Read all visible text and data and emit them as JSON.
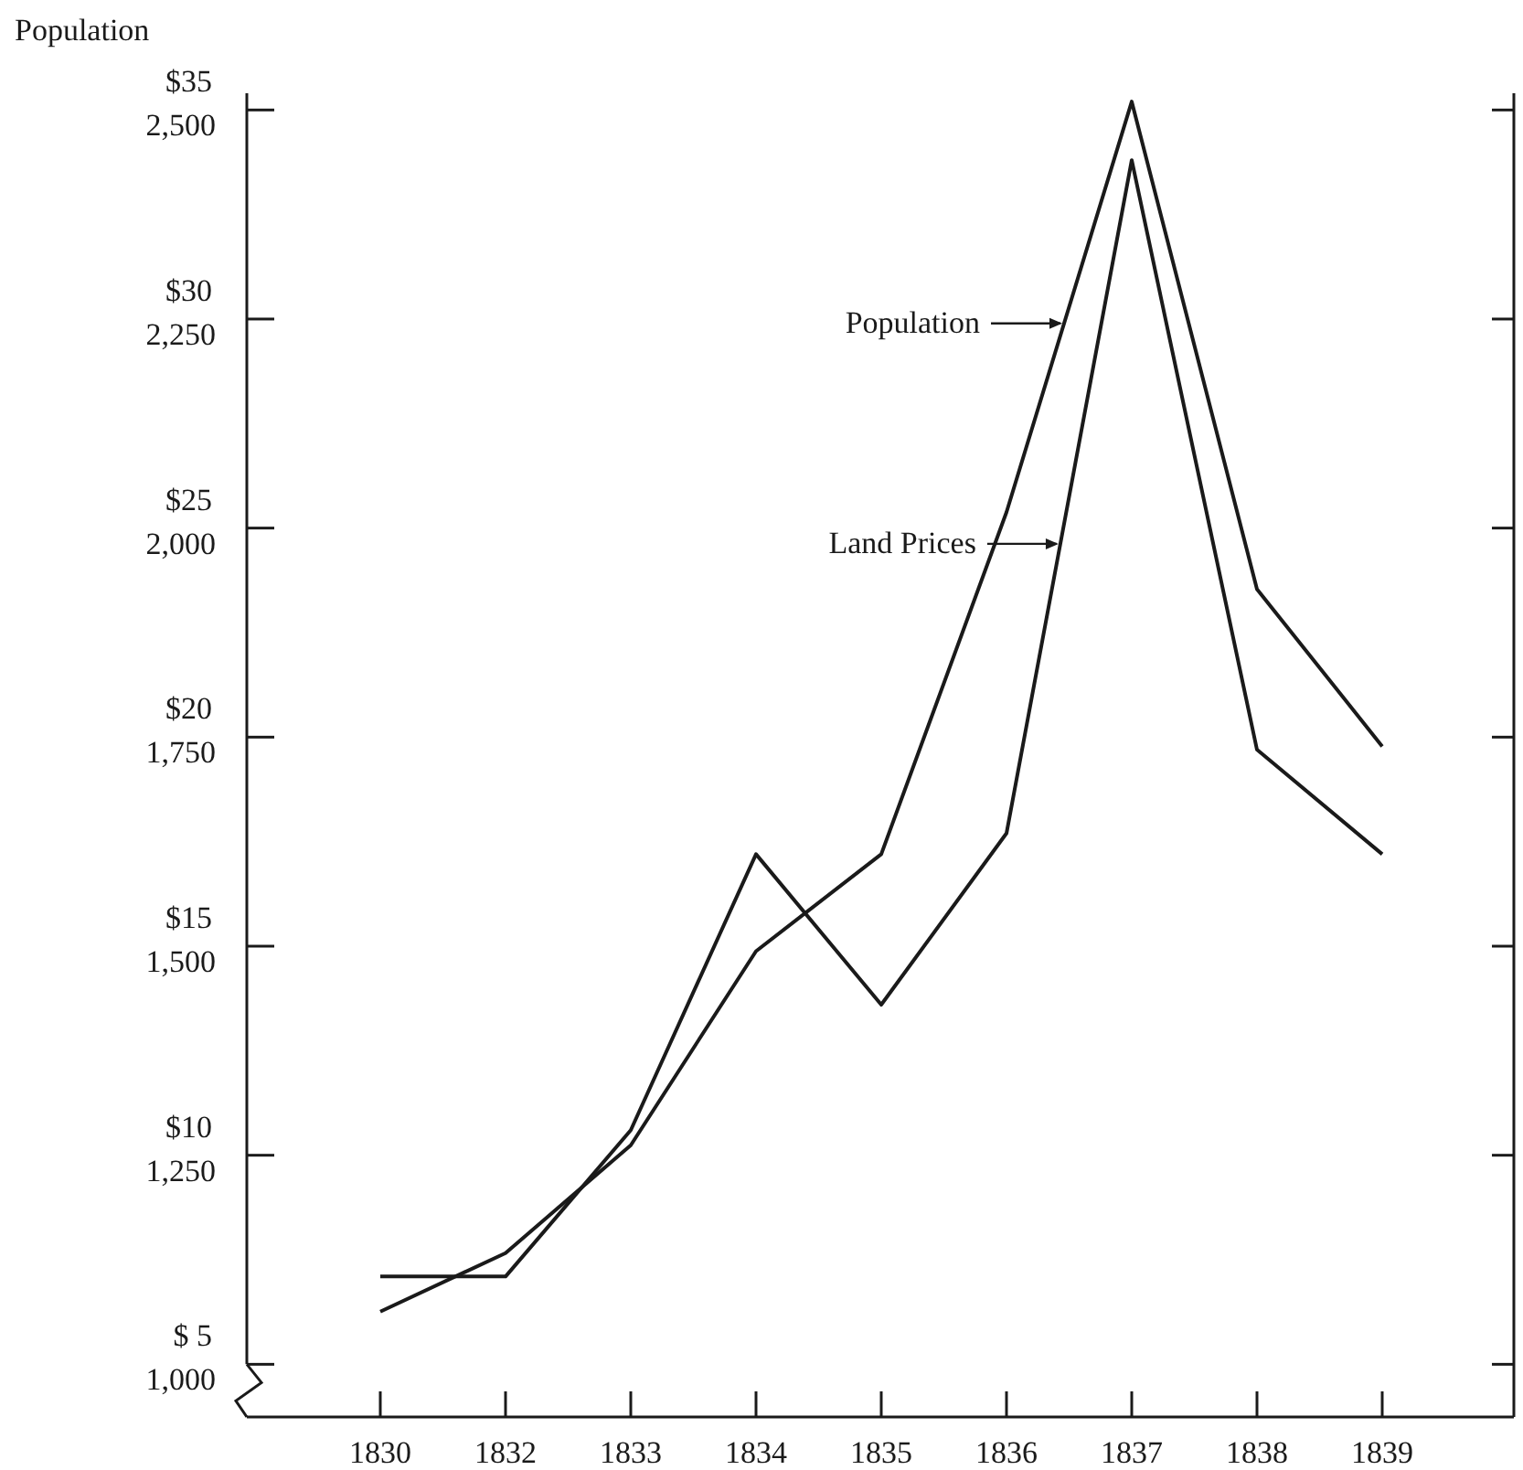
{
  "chart_data": {
    "type": "line",
    "ylabel": "Population",
    "categories": [
      "1830",
      "1832",
      "1833",
      "1834",
      "1835",
      "1836",
      "1837",
      "1838",
      "1839"
    ],
    "series": [
      {
        "name": "Population",
        "color": "#1a1a1a",
        "values": [
          1063,
          1133,
          1262,
          1494,
          1610,
          2019,
          2510,
          1927,
          1739
        ]
      },
      {
        "name": "Land Prices",
        "color": "#1a1a1a",
        "axis": "y2",
        "values": [
          7.1,
          7.1,
          10.6,
          17.2,
          13.6,
          17.7,
          33.8,
          19.7,
          17.2
        ]
      }
    ],
    "ylim": [
      937,
      2520
    ],
    "yticks": [
      {
        "value": 1000,
        "label": "1,000"
      },
      {
        "value": 1250,
        "label": "1,250"
      },
      {
        "value": 1500,
        "label": "1,500"
      },
      {
        "value": 1750,
        "label": "1,750"
      },
      {
        "value": 2000,
        "label": "2,000"
      },
      {
        "value": 2250,
        "label": "2,250"
      },
      {
        "value": 2500,
        "label": "2,500"
      }
    ],
    "y2lim": [
      3.74,
      35.4
    ],
    "y2ticks": [
      {
        "value": 5,
        "label": "$ 5"
      },
      {
        "value": 10,
        "label": "$10"
      },
      {
        "value": 15,
        "label": "$15"
      },
      {
        "value": 20,
        "label": "$20"
      },
      {
        "value": 25,
        "label": "$25"
      },
      {
        "value": 30,
        "label": "$30"
      },
      {
        "value": 35,
        "label": "$35"
      }
    ],
    "grid": false,
    "legend": "top",
    "marker": "none",
    "line_style": "solid"
  }
}
